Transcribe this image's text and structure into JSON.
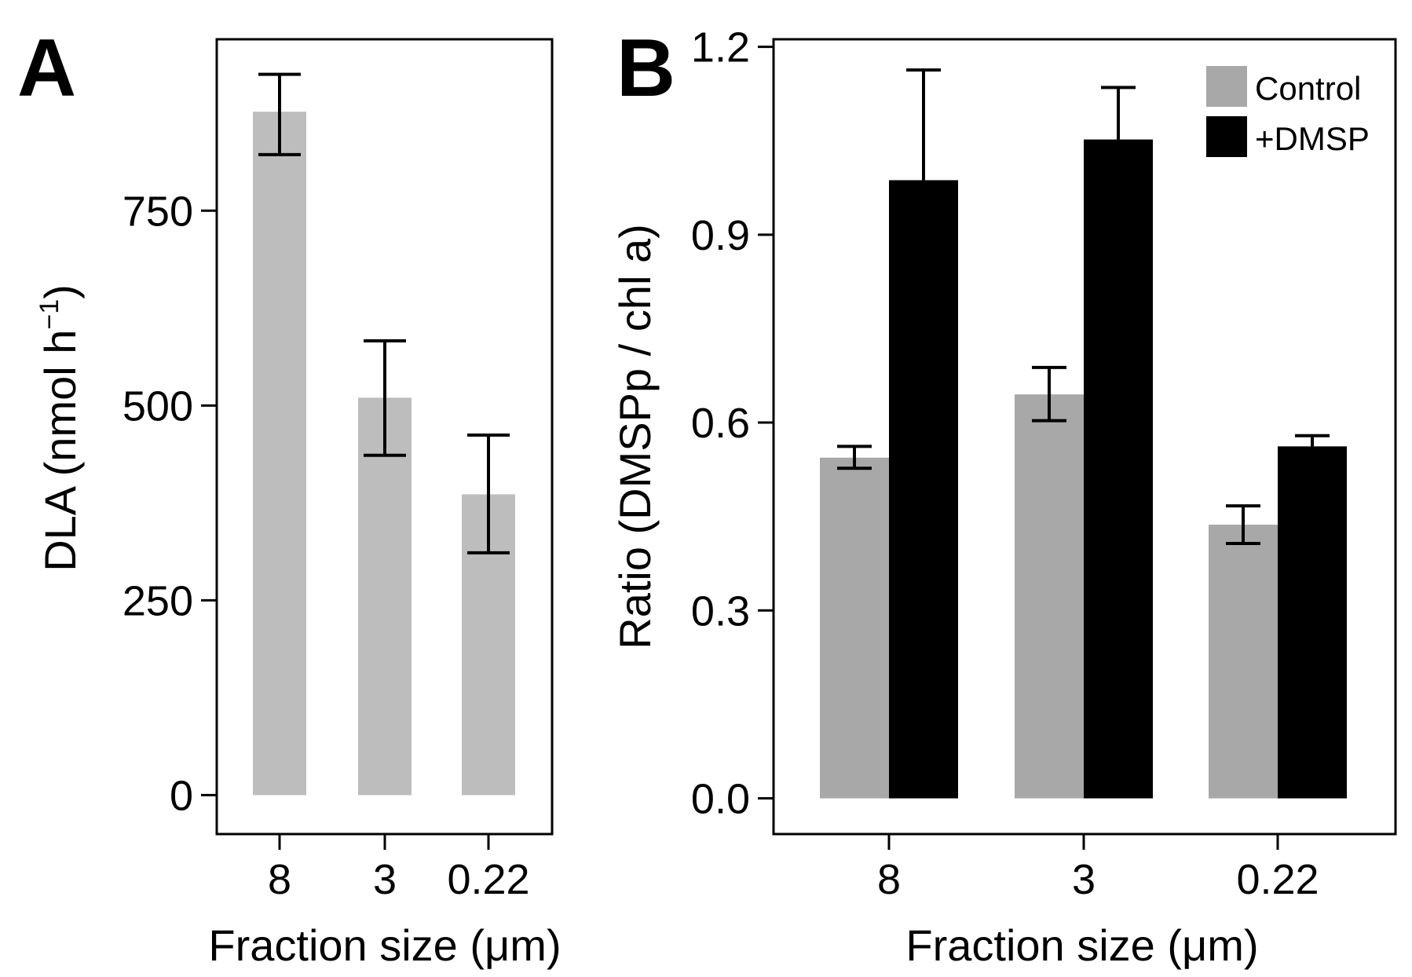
{
  "colors": {
    "control": "#bdbdbd",
    "control_b": "#a8a8a8",
    "dmsp": "#000000",
    "axis": "#000000"
  },
  "chart_data": [
    {
      "panel": "A",
      "type": "bar",
      "xlabel": "Fraction size (μm)",
      "ylabel_main": "DLA (nmol h",
      "ylabel_sup": "−1",
      "ylabel_close": ")",
      "categories": [
        "8",
        "3",
        "0.22"
      ],
      "yticks": [
        "0",
        "250",
        "500",
        "750"
      ],
      "ytick_values": [
        0,
        250,
        500,
        750
      ],
      "ylim": [
        -50,
        970
      ],
      "grid": false,
      "legend": "none",
      "series": [
        {
          "values": [
            877,
            510,
            386
          ],
          "err_low": [
            822,
            436,
            311
          ],
          "err_high": [
            925,
            583,
            462
          ]
        }
      ]
    },
    {
      "panel": "B",
      "type": "bar",
      "xlabel": "Fraction size (μm)",
      "ylabel": "Ratio (DMSPp / chl a)",
      "categories": [
        "8",
        "3",
        "0.22"
      ],
      "yticks": [
        "0.0",
        "0.3",
        "0.6",
        "0.9",
        "1.2"
      ],
      "ytick_values": [
        0.0,
        0.3,
        0.6,
        0.9,
        1.2
      ],
      "ylim": [
        -0.057,
        1.212
      ],
      "grid": false,
      "legend": "top-right",
      "series": [
        {
          "name": "Control",
          "values": [
            0.544,
            0.645,
            0.437
          ],
          "err_low": [
            0.527,
            0.603,
            0.407
          ],
          "err_high": [
            0.562,
            0.688,
            0.467
          ]
        },
        {
          "name": "+DMSP",
          "values": [
            0.987,
            1.052,
            0.562
          ],
          "err_low": [
            0.987,
            1.052,
            0.562
          ],
          "err_high": [
            1.163,
            1.135,
            0.579
          ]
        }
      ]
    }
  ]
}
